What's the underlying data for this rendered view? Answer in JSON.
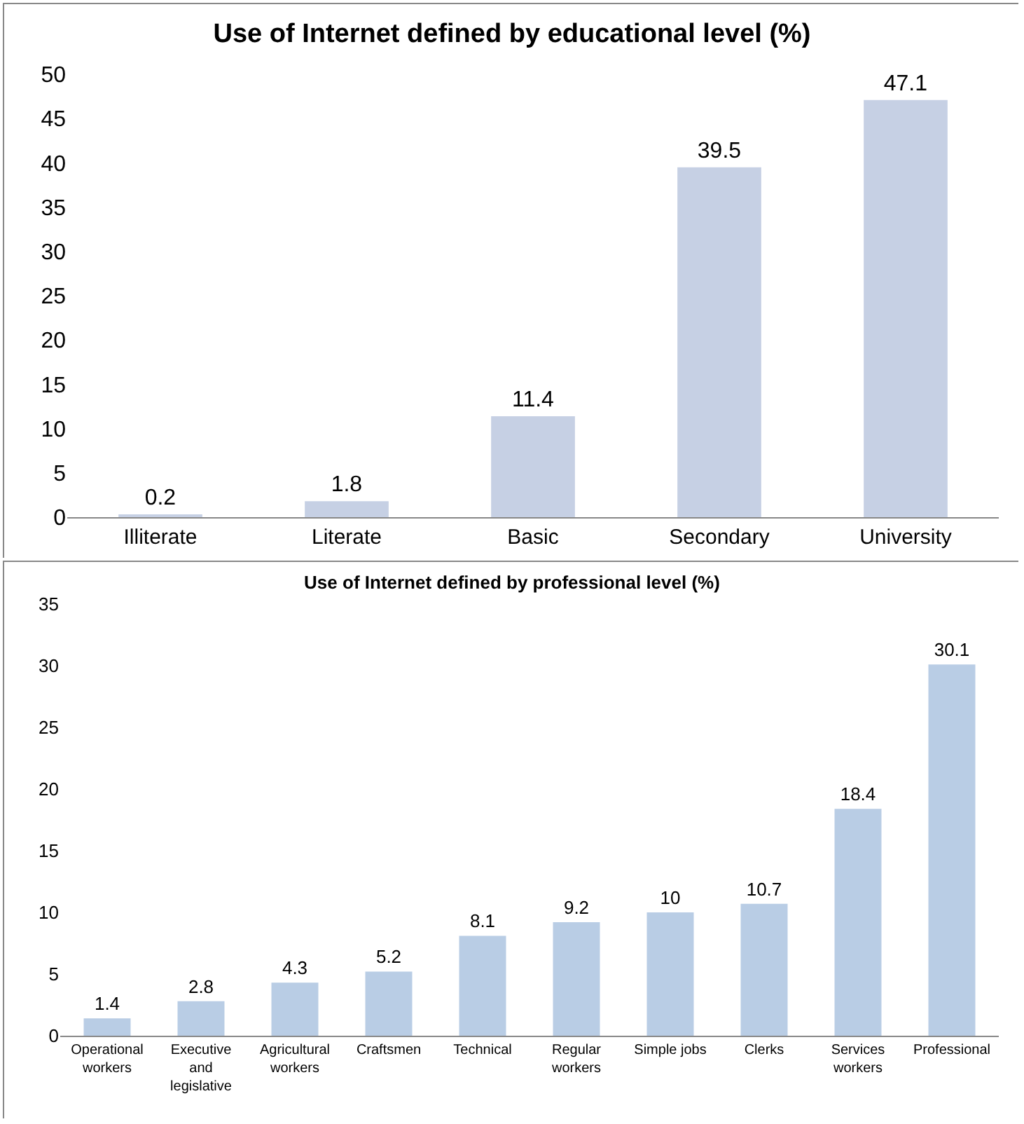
{
  "chart_data": [
    {
      "type": "bar",
      "title": "Use of Internet defined by educational level (%)",
      "categories": [
        "Illiterate",
        "Literate",
        "Basic",
        "Secondary",
        "University"
      ],
      "values": [
        0.2,
        1.8,
        11.4,
        39.5,
        47.1
      ],
      "color": "#c6d0e4",
      "ylim": [
        0,
        50
      ],
      "yticks": [
        0,
        5,
        10,
        15,
        20,
        25,
        30,
        35,
        40,
        45,
        50
      ],
      "grid": false,
      "data_labels": true
    },
    {
      "type": "bar",
      "title": "Use of Internet defined by professional level (%)",
      "categories": [
        "Operational workers",
        "Executive and legislative",
        "Agricultural workers",
        "Craftsmen",
        "Technical",
        "Regular workers",
        "Simple jobs",
        "Clerks",
        "Services workers",
        "Professional"
      ],
      "values": [
        1.4,
        2.8,
        4.3,
        5.2,
        8.1,
        9.2,
        10,
        10.7,
        18.4,
        30.1
      ],
      "color": "#b9cde5",
      "ylim": [
        0,
        35
      ],
      "yticks": [
        0,
        5,
        10,
        15,
        20,
        25,
        30,
        35
      ],
      "grid": false,
      "data_labels": true
    }
  ]
}
